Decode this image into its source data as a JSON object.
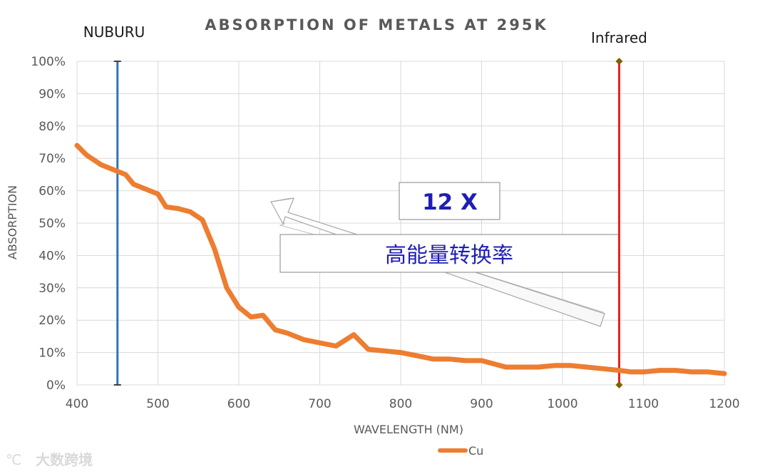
{
  "chart_data": {
    "type": "line",
    "title": "ABSORPTION  OF METALS AT 295K",
    "xlabel": "WAVELENGTH (NM)",
    "ylabel": "ABSORPTION",
    "xlim": [
      400,
      1200
    ],
    "ylim": [
      0,
      100
    ],
    "x_ticks": [
      400,
      500,
      600,
      700,
      800,
      900,
      1000,
      1100,
      1200
    ],
    "y_ticks": [
      0,
      10,
      20,
      30,
      40,
      50,
      60,
      70,
      80,
      90,
      100
    ],
    "y_tick_labels": [
      "0%",
      "10%",
      "20%",
      "30%",
      "40%",
      "50%",
      "60%",
      "70%",
      "80%",
      "90%",
      "100%"
    ],
    "grid": true,
    "legend": "bottom-center",
    "series": [
      {
        "name": "Cu",
        "color": "#ED7D31",
        "x": [
          400,
          412,
          430,
          450,
          460,
          470,
          490,
          500,
          510,
          525,
          540,
          555,
          570,
          585,
          600,
          615,
          630,
          645,
          660,
          680,
          700,
          720,
          742,
          760,
          780,
          800,
          820,
          840,
          860,
          880,
          900,
          930,
          950,
          970,
          990,
          1010,
          1030,
          1050,
          1070,
          1085,
          1100,
          1120,
          1140,
          1160,
          1180,
          1200
        ],
        "y": [
          74,
          71,
          68,
          66,
          65,
          62,
          60,
          59,
          55,
          54.5,
          53.5,
          51,
          42,
          30,
          24,
          21,
          21.5,
          17,
          16,
          14,
          13,
          12,
          15.5,
          11,
          10.5,
          10,
          9,
          8,
          8,
          7.5,
          7.5,
          5.5,
          5.5,
          5.5,
          6,
          6,
          5.5,
          5,
          4.5,
          4,
          4,
          4.5,
          4.5,
          4,
          4,
          3.5
        ]
      }
    ],
    "markers": [
      {
        "label": "NUBURU",
        "x": 450,
        "color": "#2E75B6"
      },
      {
        "label": "Infrared",
        "x": 1070,
        "color": "#E8201B"
      }
    ],
    "annotations": {
      "ratio": "12 X",
      "ratio_color": "#1F1FB4",
      "caption": "高能量转换率",
      "caption_color": "#1F1FB4"
    }
  },
  "watermark": "大数跨境"
}
